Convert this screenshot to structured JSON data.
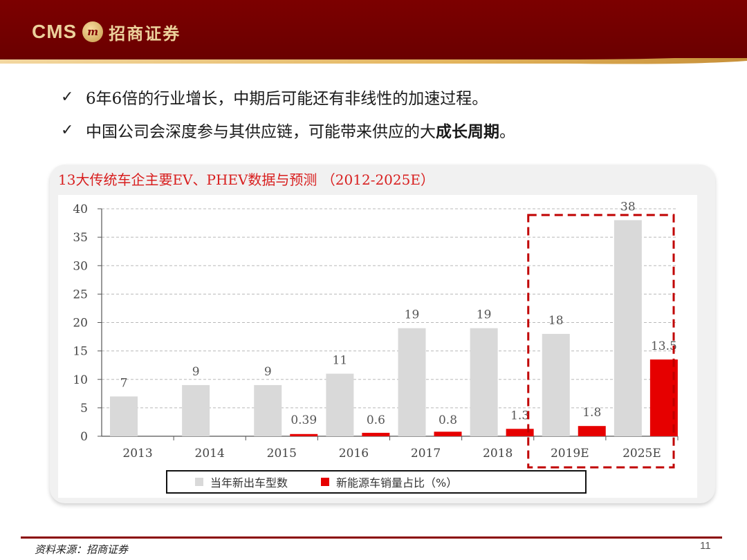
{
  "header": {
    "logo_text": "CMS",
    "logo_mark": "m",
    "logo_cn": "招商证券",
    "colors": {
      "band": "#7c0000",
      "gold": "#e3b55e"
    }
  },
  "bullets": [
    {
      "icon": "check-icon",
      "text": "6年6倍的行业增长，中期后可能还有非线性的加速过程。"
    },
    {
      "icon": "check-icon",
      "text_plain": "中国公司会深度参与其供应链，可能带来供应的大",
      "text_bold": "成长周期",
      "text_end": "。"
    }
  ],
  "chart_data": {
    "type": "bar",
    "title": "13大传统车企主要EV、PHEV数据与预测 （2012-2025E）",
    "categories": [
      "2013",
      "2014",
      "2015",
      "2016",
      "2017",
      "2018",
      "2019E",
      "2025E"
    ],
    "series": [
      {
        "name": "当年新出车型数",
        "color": "#d9d9d9",
        "values": [
          7,
          9,
          9,
          11,
          19,
          19,
          18,
          38
        ]
      },
      {
        "name": "新能源车销量占比（%）",
        "color": "#e60000",
        "values": [
          null,
          null,
          0.39,
          0.6,
          0.8,
          1.3,
          1.8,
          13.5
        ]
      }
    ],
    "data_labels": [
      [
        "7",
        "9",
        "9",
        "11",
        "19",
        "19",
        "18",
        "38"
      ],
      [
        "",
        "",
        "0.39",
        "0.6",
        "0.8",
        "1.3",
        "1.8",
        "13.5"
      ]
    ],
    "ylim": [
      0,
      40
    ],
    "yticks": [
      0,
      5,
      10,
      15,
      20,
      25,
      30,
      35,
      40
    ],
    "grid": true,
    "legend_position": "bottom",
    "highlight_categories": [
      "2019E",
      "2025E"
    ],
    "highlight_color": "#c00000"
  },
  "legend": [
    {
      "label": "当年新出车型数",
      "color": "#d9d9d9"
    },
    {
      "label": "新能源车销量占比（%）",
      "color": "#e60000"
    }
  ],
  "footer": {
    "source": "资料来源：招商证券",
    "page": "11"
  }
}
